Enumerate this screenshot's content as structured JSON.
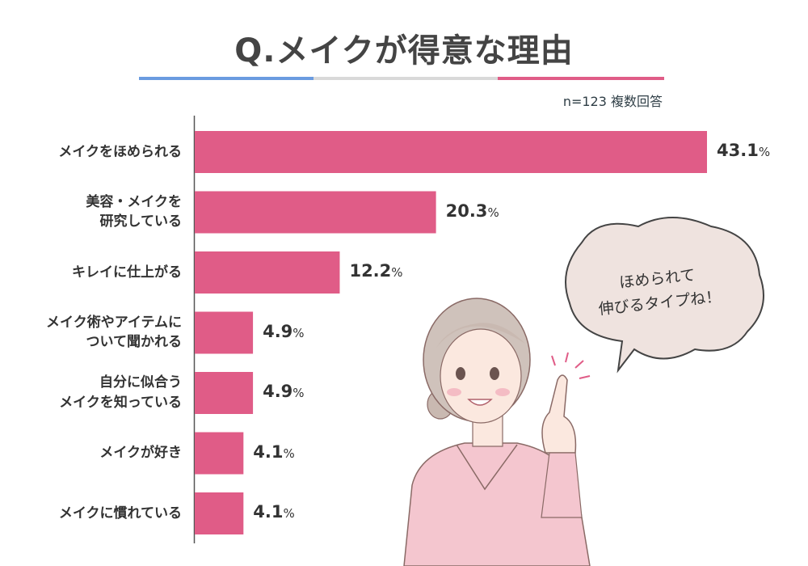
{
  "title": "Q.メイクが得意な理由",
  "meta": "n=123  複数回答",
  "colors": {
    "bar": "#e05c87",
    "rule_blue": "#6a9be0",
    "rule_gray": "#d9d9d9",
    "rule_pink": "#e05c87",
    "bubble_fill": "#efe3df",
    "bubble_stroke": "#444444"
  },
  "speech_bubble": "ほめられて\n伸びるタイプね！",
  "chart_data": {
    "type": "bar",
    "orientation": "horizontal",
    "categories": [
      "メイクをほめられる",
      "美容・メイクを\n研究している",
      "キレイに仕上がる",
      "メイク術やアイテムに\nついて聞かれる",
      "自分に似合う\nメイクを知っている",
      "メイクが好き",
      "メイクに慣れている"
    ],
    "values": [
      43.1,
      20.3,
      12.2,
      4.9,
      4.9,
      4.1,
      4.1
    ],
    "value_labels": [
      "43.1",
      "20.3",
      "12.2",
      "4.9",
      "4.9",
      "4.1",
      "4.1"
    ],
    "unit": "%",
    "xlim": [
      0,
      43.1
    ]
  }
}
